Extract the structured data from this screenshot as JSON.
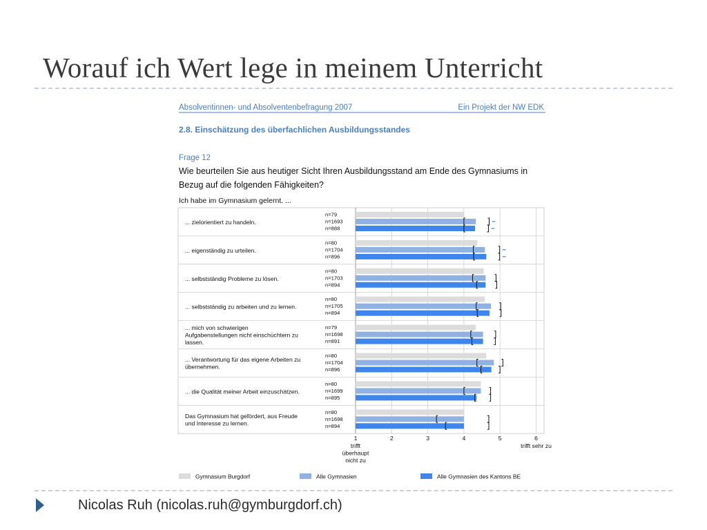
{
  "slide": {
    "title": "Worauf ich Wert lege in meinem Unterricht",
    "footer": "Nicolas Ruh (nicolas.ruh@gymburgdorf.ch)"
  },
  "report": {
    "survey": "Absolventinnen- und Absolventenbefragung 2007",
    "project": "Ein Projekt der NW EDK",
    "section": "2.8. Einschätzung des überfachlichen Ausbildungsstandes",
    "question_no": "Frage 12",
    "question_lines": [
      "Wie beurteilen Sie aus heutiger Sicht Ihren Ausbildungsstand am Ende des Gymnasiums in",
      "Bezug auf die folgenden Fähigkeiten?"
    ],
    "intro": "Ich habe im Gymnasium gelernt. ..."
  },
  "colors": {
    "burgdorf": "#dcdcdc",
    "alle": "#8fb2e3",
    "kanton_be": "#3f86ec",
    "report_text": "#4a7fc0",
    "grid": "#cfcfcf",
    "dash_marker": "#3f86ec"
  },
  "chart_data": {
    "type": "bar",
    "orientation": "horizontal",
    "xlim": [
      1,
      6
    ],
    "x_ticks": [
      1,
      2,
      3,
      4,
      5,
      6
    ],
    "x_tick_labels": [
      "1",
      "2",
      "3",
      "4",
      "5",
      "6"
    ],
    "x_label_low": [
      "trifft",
      "überhaupt",
      "nicht zu"
    ],
    "x_label_high": "trifft sehr zu",
    "legend_position": "bottom",
    "series": [
      {
        "name": "Gymnasium Burgdorf",
        "color_key": "burgdorf"
      },
      {
        "name": "Alle Gymnasien",
        "color_key": "alle"
      },
      {
        "name": "Alle Gymnasien des Kantons BE",
        "color_key": "kanton_be"
      }
    ],
    "items": [
      {
        "label": [
          "... zielorientiert zu handeln."
        ],
        "n": [
          "n=79",
          "n=1693",
          "n=888"
        ],
        "values": [
          4.0,
          4.33,
          4.31
        ],
        "ci": [
          null,
          [
            4.0,
            4.7
          ],
          [
            4.0,
            4.68
          ]
        ],
        "markers": [
          false,
          true,
          true
        ]
      },
      {
        "label": [
          "... eigenständig zu urteilen."
        ],
        "n": [
          "n=80",
          "n=1704",
          "n=896"
        ],
        "values": [
          4.37,
          4.58,
          4.62
        ],
        "ci": [
          null,
          [
            4.26,
            4.99
          ],
          [
            4.27,
            4.99
          ]
        ],
        "markers": [
          false,
          true,
          true
        ]
      },
      {
        "label": [
          "... selbstständig Probleme zu lösen."
        ],
        "n": [
          "n=80",
          "n=1703",
          "n=894"
        ],
        "values": [
          4.55,
          4.6,
          4.6
        ],
        "ci": [
          null,
          [
            4.24,
            4.89
          ],
          [
            4.35,
            4.91
          ]
        ],
        "markers": [
          false,
          false,
          false
        ]
      },
      {
        "label": [
          "... selbstständig zu arbeiten und zu lernen."
        ],
        "n": [
          "n=80",
          "n=1705",
          "n=894"
        ],
        "values": [
          4.58,
          4.75,
          4.71
        ],
        "ci": [
          null,
          [
            4.34,
            5.02
          ],
          [
            4.37,
            5.03
          ]
        ],
        "markers": [
          false,
          false,
          false
        ]
      },
      {
        "label": [
          "... mich von schwierigen",
          "Aufgabenstellungen nicht einschüchtern zu",
          "lassen."
        ],
        "n": [
          "n=79",
          "n=1698",
          "n=891"
        ],
        "values": [
          4.33,
          4.53,
          4.53
        ],
        "ci": [
          null,
          [
            4.19,
            4.88
          ],
          [
            4.22,
            4.87
          ]
        ],
        "markers": [
          false,
          false,
          false
        ]
      },
      {
        "label": [
          "... Verantwortung für das eigene Arbeiten zu",
          "übernehmen."
        ],
        "n": [
          "n=80",
          "n=1704",
          "n=896"
        ],
        "values": [
          4.62,
          4.83,
          4.76
        ],
        "ci": [
          null,
          [
            4.36,
            5.08
          ],
          [
            4.47,
            5.0
          ]
        ],
        "markers": [
          false,
          false,
          false
        ]
      },
      {
        "label": [
          "... die Qualität meiner Arbeit einzuschätzen."
        ],
        "n": [
          "n=80",
          "n=1699",
          "n=895"
        ],
        "values": [
          4.47,
          4.47,
          4.35
        ],
        "ci": [
          null,
          [
            4.0,
            4.74
          ],
          [
            4.3,
            4.74
          ]
        ],
        "markers": [
          false,
          false,
          false
        ]
      },
      {
        "label": [
          "Das Gymnasium hat gefördert, aus Freude",
          "und Interesse zu lernen."
        ],
        "n": [
          "n=80",
          "n=1698",
          "n=894"
        ],
        "values": [
          4.0,
          4.0,
          4.0
        ],
        "ci": [
          null,
          [
            3.24,
            4.69
          ],
          [
            3.49,
            4.69
          ]
        ],
        "markers": [
          false,
          false,
          false
        ]
      }
    ]
  }
}
